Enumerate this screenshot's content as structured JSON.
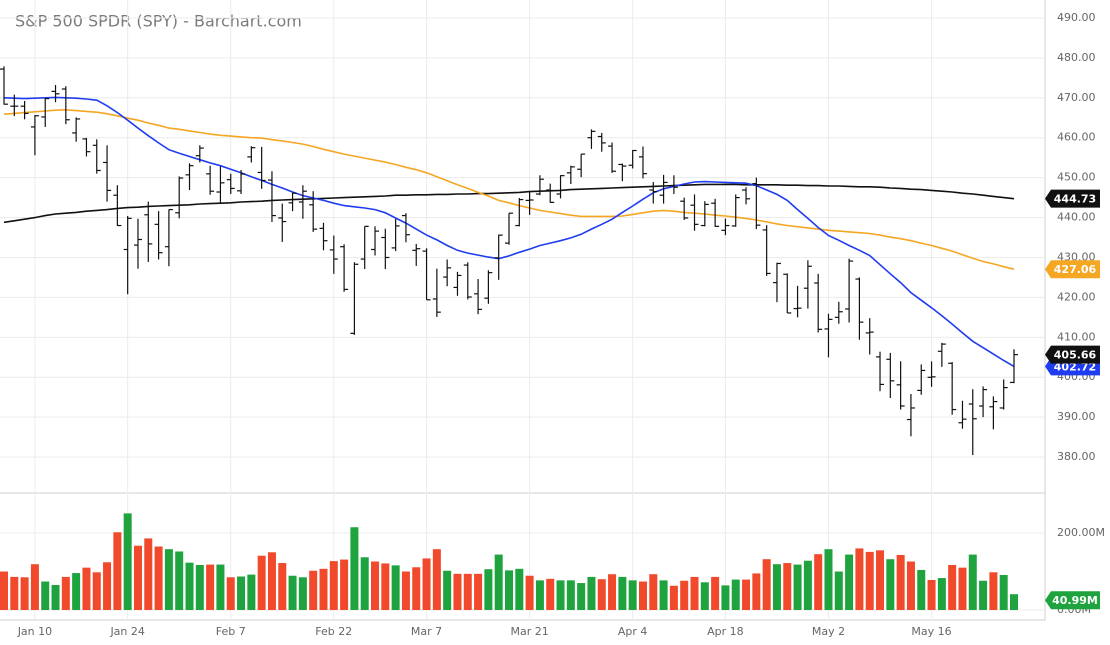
{
  "chart_data": {
    "type": "ohlc",
    "title": "S&P 500 SPDR (SPY) - Barchart.com",
    "categories": [
      null,
      null,
      null,
      "Jan 10",
      null,
      null,
      null,
      null,
      null,
      null,
      null,
      null,
      "Jan 24",
      null,
      null,
      null,
      null,
      null,
      null,
      null,
      null,
      null,
      "Feb 7",
      null,
      null,
      null,
      null,
      null,
      null,
      null,
      null,
      null,
      "Feb 22",
      null,
      null,
      null,
      null,
      null,
      null,
      null,
      null,
      "Mar 7",
      null,
      null,
      null,
      null,
      null,
      null,
      null,
      null,
      null,
      "Mar 21",
      null,
      null,
      null,
      null,
      null,
      null,
      null,
      null,
      null,
      "Apr 4",
      null,
      null,
      null,
      null,
      null,
      null,
      null,
      null,
      "Apr 18",
      null,
      null,
      null,
      null,
      null,
      null,
      null,
      null,
      null,
      "May 2",
      null,
      null,
      null,
      null,
      null,
      null,
      null,
      null,
      null,
      "May 16",
      null,
      null,
      null,
      null,
      null,
      null,
      null,
      null
    ],
    "ohlc": {
      "color": "#111111",
      "open": [
        477.2,
        467.9,
        467.9,
        462.7,
        465.2,
        471.6,
        472.2,
        461.2,
        459.7,
        458.1,
        453.8,
        445.6,
        432.0,
        433.1,
        440.7,
        438.3,
        432.7,
        441.2,
        450.7,
        455.5,
        450.95,
        446.4,
        449.5,
        446.7,
        455.2,
        451.3,
        449.4,
        439.9,
        443.7,
        443.9,
        443.2,
        437.3,
        431.9,
        432.7,
        411.0,
        429.6,
        432.0,
        435.0,
        432.4,
        440.5,
        431.8,
        431.6,
        419.6,
        425.1,
        422.5,
        428.1,
        420.9,
        419.8,
        429.9,
        433.6,
        438.0,
        444.3,
        445.9,
        446.9,
        445.9,
        451.2,
        452.1,
        460.0,
        460.3,
        457.9,
        453.3,
        453.1,
        455.2,
        446.9,
        445.6,
        447.97,
        444.1,
        443.1,
        438.0,
        443.6,
        436.8,
        437.9,
        446.9,
        448.5,
        436.9,
        423.7,
        425.8,
        417.2,
        422.3,
        423.6,
        412.1,
        415.0,
        417.1,
        424.6,
        411.1,
        405.1,
        404.5,
        398.1,
        389.4,
        396.7,
        399.98,
        406.5,
        403.5,
        388.6,
        393.3,
        392.8,
        392.6,
        392.3,
        398.7
      ],
      "high": [
        477.9,
        470.8,
        469.2,
        465.7,
        469.9,
        473.2,
        472.9,
        465.1,
        459.96,
        459.6,
        458.1,
        448.1,
        440.4,
        439.7,
        444.0,
        441.6,
        442.0,
        450.3,
        453.6,
        458.1,
        452.97,
        452.8,
        450.99,
        451.9,
        457.9,
        457.7,
        451.6,
        443.5,
        446.3,
        448.1,
        446.6,
        438.7,
        435.5,
        433.3,
        428.8,
        437.8,
        437.8,
        437.2,
        439.7,
        441.1,
        433.4,
        432.3,
        427.2,
        429.5,
        426.4,
        428.8,
        424.6,
        426.8,
        435.7,
        441.1,
        444.9,
        446.5,
        450.6,
        448.5,
        450.6,
        452.98,
        455.9,
        462.1,
        461.2,
        458.8,
        453.5,
        456.9,
        457.8,
        448.9,
        450.7,
        450.6,
        445.0,
        445.8,
        444.1,
        444.7,
        439.75,
        445.8,
        447.6,
        450.0,
        438.1,
        428.7,
        426.0,
        422.9,
        429.3,
        425.9,
        415.9,
        418.9,
        429.7,
        425.0,
        414.8,
        406.4,
        406.1,
        404.0,
        395.8,
        403.2,
        403.97,
        408.6,
        403.8,
        394.1,
        397.0,
        397.7,
        395.2,
        399.45,
        407.0
      ],
      "low": [
        468.3,
        465.4,
        464.6,
        455.6,
        462.7,
        468.9,
        463.4,
        459.0,
        455.3,
        451.0,
        444.0,
        437.9,
        420.8,
        427.2,
        428.9,
        429.5,
        427.8,
        439.8,
        446.9,
        453.8,
        445.7,
        443.8,
        445.9,
        445.9,
        453.8,
        447.2,
        438.9,
        433.9,
        441.6,
        439.7,
        436.4,
        431.8,
        425.9,
        421.4,
        410.6,
        427.1,
        430.5,
        427.1,
        431.6,
        433.8,
        427.9,
        419.4,
        415.1,
        422.8,
        420.4,
        419.5,
        415.8,
        418.4,
        424.4,
        433.2,
        437.8,
        440.7,
        445.6,
        443.7,
        444.8,
        448.4,
        450.1,
        457.2,
        456.5,
        451.2,
        449.1,
        452.3,
        449.8,
        443.5,
        443.5,
        445.9,
        439.4,
        436.7,
        437.8,
        437.7,
        435.6,
        437.7,
        443.3,
        437.1,
        425.4,
        418.8,
        416.1,
        415.0,
        417.2,
        411.2,
        405.0,
        413.4,
        413.7,
        409.4,
        405.7,
        396.5,
        394.8,
        391.9,
        385.2,
        395.6,
        397.6,
        402.6,
        390.6,
        387.1,
        380.5,
        390.0,
        386.96,
        391.9,
        398.5
      ],
      "close": [
        468.4,
        467.9,
        466.1,
        465.5,
        469.8,
        471.0,
        464.5,
        464.7,
        456.5,
        451.8,
        446.8,
        438.0,
        439.8,
        434.5,
        433.4,
        431.2,
        442.0,
        449.9,
        453.0,
        457.4,
        446.6,
        448.7,
        447.3,
        450.9,
        457.5,
        449.3,
        440.5,
        439.0,
        446.1,
        446.6,
        437.1,
        434.2,
        429.6,
        422.0,
        428.3,
        437.8,
        436.6,
        430.0,
        437.9,
        435.7,
        432.2,
        419.4,
        416.3,
        427.4,
        425.5,
        420.1,
        417.0,
        426.2,
        435.6,
        441.1,
        444.5,
        444.4,
        449.6,
        443.8,
        450.5,
        452.7,
        455.9,
        461.6,
        458.7,
        451.6,
        452.9,
        456.8,
        451.0,
        446.5,
        448.8,
        447.6,
        439.9,
        438.3,
        443.3,
        437.8,
        438.0,
        445.0,
        444.7,
        438.1,
        426.0,
        428.5,
        416.1,
        417.3,
        427.8,
        412.0,
        414.5,
        416.4,
        429.1,
        413.8,
        411.3,
        398.2,
        399.1,
        392.8,
        392.3,
        401.7,
        400.1,
        408.3,
        391.9,
        389.5,
        389.6,
        396.9,
        393.9,
        397.4,
        405.66
      ]
    },
    "moving_averages": [
      {
        "color": "#111111",
        "values": [
          438.8,
          439.2,
          439.6,
          440.0,
          440.5,
          440.9,
          441.1,
          441.3,
          441.6,
          441.8,
          442.0,
          442.3,
          442.5,
          442.6,
          442.8,
          442.9,
          443.0,
          443.1,
          443.2,
          443.4,
          443.5,
          443.6,
          443.7,
          443.9,
          444.0,
          444.1,
          444.3,
          444.4,
          444.5,
          444.6,
          444.7,
          444.8,
          444.9,
          445.0,
          445.1,
          445.2,
          445.3,
          445.4,
          445.6,
          445.6,
          445.7,
          445.7,
          445.8,
          445.8,
          445.9,
          445.9,
          446.0,
          446.0,
          446.1,
          446.2,
          446.3,
          446.5,
          446.6,
          446.7,
          446.8,
          447.0,
          447.1,
          447.2,
          447.3,
          447.4,
          447.5,
          447.6,
          447.7,
          447.8,
          447.9,
          448.0,
          448.1,
          448.2,
          448.3,
          448.3,
          448.3,
          448.3,
          448.2,
          448.2,
          448.2,
          448.2,
          448.1,
          448.1,
          448.0,
          448.0,
          447.9,
          447.9,
          447.8,
          447.7,
          447.7,
          447.6,
          447.4,
          447.3,
          447.1,
          447.0,
          446.8,
          446.6,
          446.4,
          446.1,
          445.9,
          445.6,
          445.3,
          445.0,
          444.73
        ]
      },
      {
        "color": "#f5a623",
        "values": [
          465.9,
          466.1,
          466.3,
          466.5,
          466.7,
          466.9,
          467.0,
          466.8,
          466.6,
          466.4,
          466.0,
          465.5,
          464.9,
          464.4,
          463.7,
          463.1,
          462.4,
          462.1,
          461.7,
          461.3,
          460.9,
          460.6,
          460.4,
          460.2,
          460.0,
          459.9,
          459.5,
          459.2,
          458.8,
          458.4,
          457.8,
          457.1,
          456.5,
          455.9,
          455.4,
          454.9,
          454.4,
          453.9,
          453.3,
          452.6,
          452.0,
          451.2,
          450.2,
          449.2,
          448.2,
          447.3,
          446.3,
          445.4,
          444.3,
          443.7,
          443.0,
          442.4,
          441.8,
          441.4,
          441.0,
          440.6,
          440.3,
          440.3,
          440.3,
          440.3,
          440.4,
          440.8,
          441.2,
          441.6,
          441.8,
          441.6,
          441.3,
          441.1,
          440.9,
          440.6,
          440.4,
          440.1,
          439.8,
          439.4,
          438.9,
          438.4,
          438.0,
          437.7,
          437.4,
          437.1,
          436.8,
          436.6,
          436.4,
          436.2,
          436.0,
          435.6,
          435.1,
          434.7,
          434.2,
          433.6,
          433.0,
          432.3,
          431.6,
          430.7,
          429.8,
          429.0,
          428.4,
          427.7,
          427.06
        ]
      },
      {
        "color": "#1f3cf0",
        "values": [
          470.0,
          469.9,
          469.8,
          469.9,
          470.0,
          470.1,
          470.0,
          469.9,
          469.7,
          469.4,
          468.0,
          466.3,
          464.4,
          462.4,
          460.5,
          458.7,
          457.0,
          456.1,
          455.3,
          454.5,
          453.7,
          453.0,
          452.1,
          451.2,
          450.2,
          449.3,
          448.3,
          447.4,
          446.4,
          445.5,
          444.9,
          444.3,
          443.6,
          443.0,
          442.7,
          442.4,
          442.0,
          441.2,
          439.9,
          438.6,
          437.1,
          435.6,
          434.4,
          433.0,
          431.8,
          431.1,
          430.6,
          430.1,
          429.7,
          430.4,
          431.3,
          432.1,
          433.0,
          433.6,
          434.2,
          434.9,
          435.8,
          437.1,
          438.3,
          439.6,
          441.3,
          442.9,
          444.6,
          446.2,
          447.2,
          447.8,
          448.4,
          448.9,
          449.0,
          448.9,
          448.8,
          448.7,
          448.6,
          448.0,
          446.9,
          445.8,
          444.3,
          442.0,
          439.8,
          437.5,
          435.5,
          434.3,
          433.0,
          431.8,
          430.5,
          428.2,
          425.9,
          423.7,
          421.2,
          419.3,
          417.4,
          415.4,
          413.3,
          411.1,
          409.0,
          407.4,
          405.8,
          404.2,
          402.72
        ]
      }
    ],
    "volume": {
      "up_color": "#1fa33e",
      "down_color": "#f0492b",
      "values": [
        100,
        86,
        85,
        119,
        74,
        65,
        86,
        96,
        110,
        98,
        124,
        202,
        251,
        167,
        186,
        165,
        158,
        152,
        123,
        117,
        118,
        118,
        85,
        87,
        92,
        141,
        150,
        122,
        89,
        85,
        102,
        107,
        127,
        131,
        215,
        137,
        126,
        121,
        116,
        100,
        111,
        134,
        158,
        102,
        94,
        94,
        94,
        106,
        144,
        103,
        107,
        89,
        77,
        81,
        77,
        77,
        70,
        86,
        80,
        93,
        86,
        77,
        74,
        93,
        77,
        63,
        76,
        86,
        72,
        86,
        64,
        79,
        79,
        95,
        132,
        119,
        122,
        118,
        128,
        145,
        158,
        100,
        144,
        160,
        151,
        155,
        132,
        143,
        126,
        104,
        78,
        83,
        117,
        110,
        144,
        76,
        98,
        91,
        40.99
      ],
      "value_labels": [
        null,
        null,
        null,
        null,
        null,
        null,
        null,
        null,
        null,
        null,
        null,
        null,
        null,
        null,
        null,
        null,
        null,
        null,
        null,
        null,
        null,
        null,
        null,
        null,
        null,
        null,
        null,
        null,
        null,
        null,
        null,
        null,
        null,
        null,
        null,
        null,
        null,
        null,
        null,
        null,
        null,
        null,
        null,
        null,
        null,
        null,
        null,
        null,
        null,
        null,
        null,
        null,
        null,
        null,
        null,
        null,
        null,
        null,
        null,
        null,
        null,
        null,
        null,
        null,
        null,
        null,
        null,
        null,
        null,
        null,
        null,
        null,
        null,
        null,
        null,
        null,
        null,
        null,
        null,
        null,
        null,
        null,
        null,
        null,
        null,
        null,
        null,
        null,
        null,
        null,
        null,
        null,
        null,
        null,
        null,
        null,
        null,
        null,
        "40.99M"
      ],
      "ylim": [
        -26,
        304
      ],
      "yticks": [
        {
          "value": 0,
          "label": "0.00M"
        },
        {
          "value": 200,
          "label": "200.00M"
        }
      ]
    },
    "ylim": [
      371,
      494.5
    ],
    "yticks": [
      {
        "value": 380,
        "label": "380.00"
      },
      {
        "value": 390,
        "label": "390.00"
      },
      {
        "value": 400,
        "label": "400.00"
      },
      {
        "value": 410,
        "label": "410.00"
      },
      {
        "value": 420,
        "label": "420.00"
      },
      {
        "value": 430,
        "label": "430.00"
      },
      {
        "value": 440,
        "label": "440.00"
      },
      {
        "value": 450,
        "label": "450.00"
      },
      {
        "value": 460,
        "label": "460.00"
      },
      {
        "value": 470,
        "label": "470.00"
      },
      {
        "value": 480,
        "label": "480.00"
      },
      {
        "value": 490,
        "label": "490.00"
      }
    ],
    "grid": true
  }
}
